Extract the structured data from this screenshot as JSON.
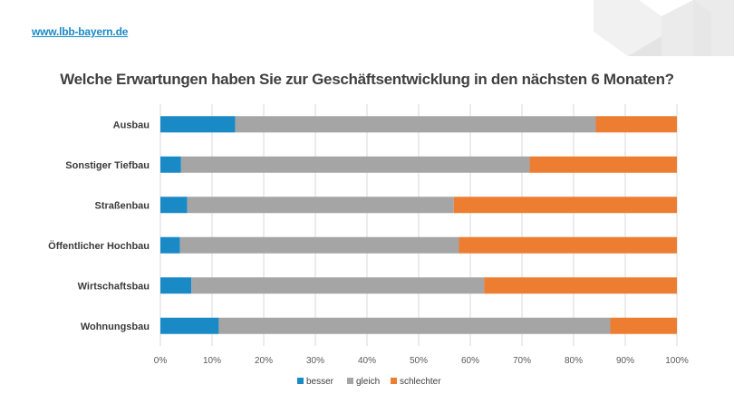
{
  "header": {
    "site_link": "www.lbb-bayern.de"
  },
  "colors": {
    "besser": "#1a8ac6",
    "gleich": "#a5a5a5",
    "schlechter": "#ed7d31",
    "grid": "#d9d9d9",
    "deco": "#eeeeee"
  },
  "chart_data": {
    "type": "bar",
    "orientation": "horizontal",
    "stacked": "percent",
    "title": "Welche Erwartungen haben Sie zur Geschäftsentwicklung in den nächsten 6 Monaten?",
    "categories": [
      "Ausbau",
      "Sonstiger Tiefbau",
      "Straßenbau",
      "Öffentlicher Hochbau",
      "Wirtschaftsbau",
      "Wohnungsbau"
    ],
    "series": [
      {
        "name": "besser",
        "values": [
          14.5,
          4,
          5.2,
          3.8,
          6,
          11.3
        ]
      },
      {
        "name": "gleich",
        "values": [
          69.8,
          67.5,
          51.6,
          54,
          56.7,
          75.8
        ]
      },
      {
        "name": "schlechter",
        "values": [
          15.7,
          28.5,
          43.2,
          42.2,
          37.3,
          12.9
        ]
      }
    ],
    "xlim": [
      0,
      100
    ],
    "tick_labels": [
      "0%",
      "10%",
      "20%",
      "30%",
      "40%",
      "50%",
      "60%",
      "70%",
      "80%",
      "90%",
      "100%"
    ],
    "grid": true,
    "legend_position": "bottom"
  }
}
